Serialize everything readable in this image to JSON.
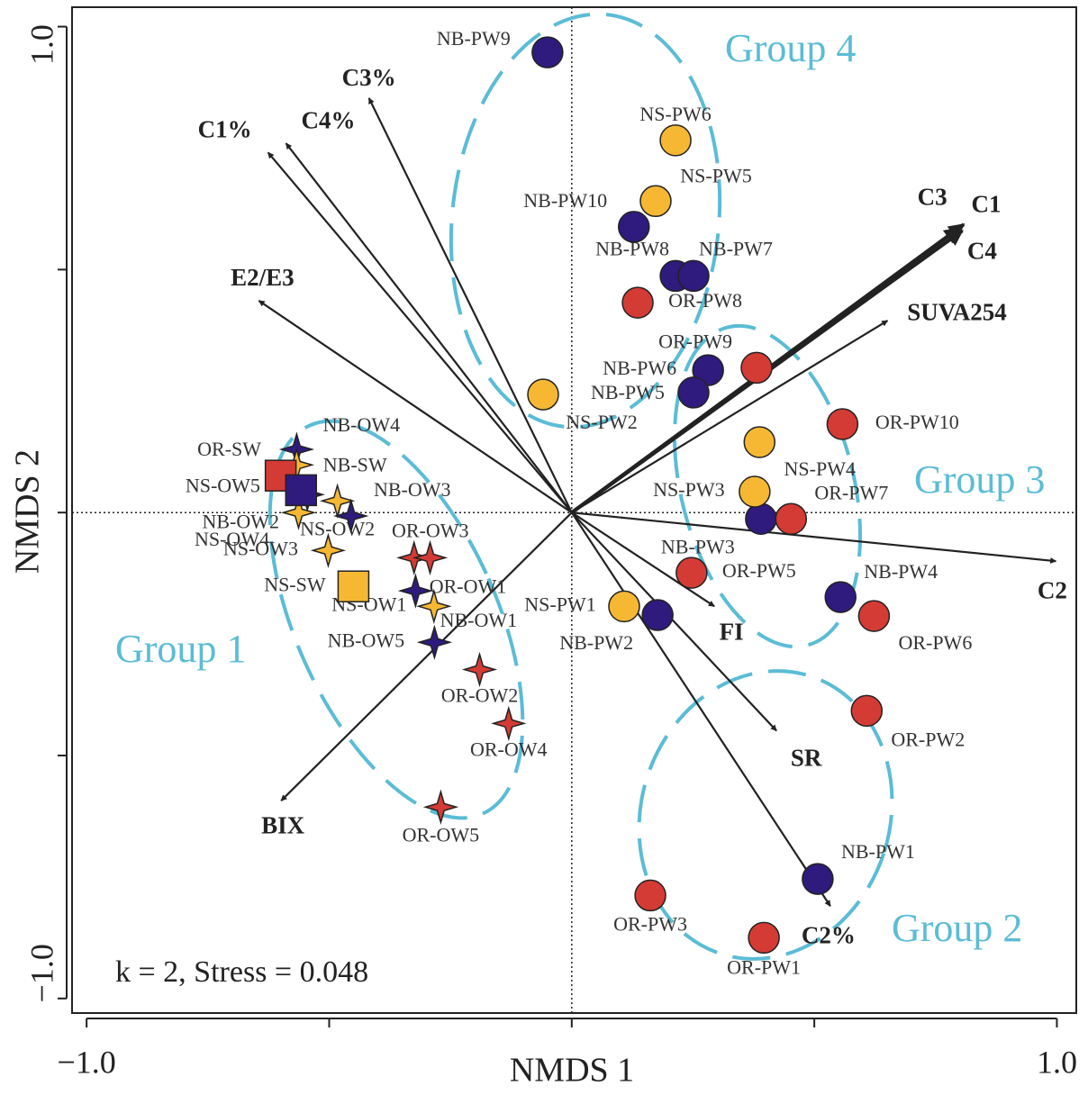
{
  "chart_data": {
    "type": "scatter",
    "xlabel": "NMDS 1",
    "ylabel": "NMDS 2",
    "annotation": "k = 2, Stress = 0.048",
    "xlim": [
      -1.03,
      1.04
    ],
    "ylim": [
      -1.03,
      1.04
    ],
    "xticks": [
      {
        "value": -1,
        "label": "−1.0"
      },
      {
        "value": -0.5,
        "label": null
      },
      {
        "value": 0,
        "label": null
      },
      {
        "value": 0.5,
        "label": null
      },
      {
        "value": 1,
        "label": "1.0"
      }
    ],
    "yticks": [
      {
        "value": -1,
        "label": "−1.0"
      },
      {
        "value": -0.5,
        "label": null
      },
      {
        "value": 0,
        "label": null
      },
      {
        "value": 0.5,
        "label": null
      },
      {
        "value": 1,
        "label": "1.0"
      }
    ],
    "groups": [
      "Group 1",
      "Group 2",
      "Group 3",
      "Group 4"
    ],
    "series": [
      {
        "color": "#2f1b7e",
        "marker": "circle",
        "labels": [
          "NB-PW9",
          "NB-PW10",
          "NB-PW8",
          "NB-PW7",
          "NB-PW6",
          "NB-PW5",
          "NB-PW3",
          "NB-PW4",
          "NB-PW2",
          "NB-PW1"
        ],
        "x": [
          -0.05,
          0.128,
          0.214,
          0.251,
          0.281,
          0.251,
          0.39,
          0.554,
          0.177,
          0.507
        ],
        "y": [
          0.947,
          0.588,
          0.487,
          0.487,
          0.293,
          0.247,
          -0.013,
          -0.174,
          -0.211,
          -0.754
        ]
      },
      {
        "color": "#f6b833",
        "marker": "circle",
        "labels": [
          "NS-PW6",
          "NS-PW5",
          "NS-PW2",
          "NS-PW4",
          "NS-PW3",
          "NS-PW1"
        ],
        "x": [
          0.214,
          0.173,
          -0.059,
          0.387,
          0.377,
          0.108
        ],
        "y": [
          0.766,
          0.641,
          0.243,
          0.145,
          0.043,
          -0.193
        ]
      },
      {
        "color": "#d43b35",
        "marker": "circle",
        "labels": [
          "OR-PW8",
          "OR-PW9",
          "OR-PW10",
          "OR-PW7",
          "OR-PW5",
          "OR-PW6",
          "OR-PW2",
          "OR-PW3",
          "OR-PW1"
        ],
        "x": [
          0.136,
          0.381,
          0.558,
          0.452,
          0.247,
          0.623,
          0.608,
          0.162,
          0.396
        ],
        "y": [
          0.432,
          0.298,
          0.182,
          -0.013,
          -0.124,
          -0.213,
          -0.408,
          -0.788,
          -0.875
        ]
      },
      {
        "color": "#2f1b7e",
        "marker": "star",
        "labels": [
          "NB-OW4",
          "NB-OW3",
          "NB-OW5",
          "NB-OW1",
          "NB-OW2"
        ],
        "x": [
          -0.567,
          -0.455,
          -0.283,
          -0.322,
          -0.545
        ],
        "y": [
          0.13,
          -0.007,
          -0.267,
          -0.161,
          0.037
        ]
      },
      {
        "color": "#f6b833",
        "marker": "star",
        "labels": [
          "NS-OW5",
          "NS-OW2",
          "NS-OW4",
          "NS-OW3",
          "NS-OW1"
        ],
        "x": [
          -0.567,
          -0.483,
          -0.563,
          -0.502,
          -0.284
        ],
        "y": [
          0.098,
          0.024,
          0,
          -0.078,
          -0.193
        ]
      },
      {
        "color": "#d43b35",
        "marker": "star",
        "labels": [
          "OR-OW3",
          "OR-OW1",
          "OR-OW2",
          "OR-OW4",
          "OR-OW5"
        ],
        "x": [
          -0.325,
          -0.292,
          -0.19,
          -0.13,
          -0.27
        ],
        "y": [
          -0.093,
          -0.093,
          -0.323,
          -0.434,
          -0.606
        ]
      },
      {
        "color": "#d43b35",
        "marker": "square",
        "labels": [
          "OR-SW"
        ],
        "x": [
          -0.6
        ],
        "y": [
          0.076
        ]
      },
      {
        "color": "#2f1b7e",
        "marker": "square",
        "labels": [
          "NB-SW"
        ],
        "x": [
          -0.558
        ],
        "y": [
          0.046
        ]
      },
      {
        "color": "#f6b833",
        "marker": "square",
        "labels": [
          "NS-SW"
        ],
        "x": [
          -0.45
        ],
        "y": [
          -0.152
        ]
      }
    ],
    "vectors": {
      "labels": [
        "C1%",
        "C4%",
        "C3%",
        "E2/E3",
        "C3",
        "C1",
        "C4",
        "SUVA254",
        "C2",
        "FI",
        "SR",
        "C2%",
        "BIX"
      ],
      "x": [
        -0.626,
        -0.589,
        -0.418,
        -0.645,
        0.799,
        0.808,
        0.805,
        0.651,
        0.998,
        0.294,
        0.422,
        0.533,
        -0.599
      ],
      "y": [
        0.741,
        0.76,
        0.853,
        0.436,
        0.585,
        0.593,
        0.58,
        0.395,
        -0.1,
        -0.193,
        -0.449,
        -0.81,
        -0.593
      ],
      "color": "#222"
    }
  }
}
